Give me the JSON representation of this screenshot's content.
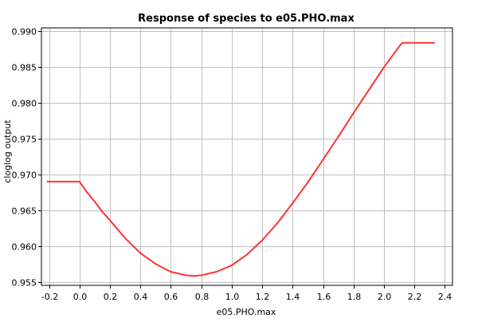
{
  "chart_data": {
    "type": "line",
    "title": "Response of species to e05.PHO.max",
    "xlabel": "e05.PHO.max",
    "ylabel": "cloglog output",
    "xlim": [
      -0.25,
      2.45
    ],
    "ylim": [
      0.9545,
      0.9905
    ],
    "x_ticks": [
      -0.2,
      0.0,
      0.2,
      0.4,
      0.6,
      0.8,
      1.0,
      1.2,
      1.4,
      1.6,
      1.8,
      2.0,
      2.2,
      2.4
    ],
    "x_tick_labels": [
      "-0.2",
      "0.0",
      "0.2",
      "0.4",
      "0.6",
      "0.8",
      "1.0",
      "1.2",
      "1.4",
      "1.6",
      "1.8",
      "2.0",
      "2.2",
      "2.4"
    ],
    "y_ticks": [
      0.955,
      0.96,
      0.965,
      0.97,
      0.975,
      0.98,
      0.985,
      0.99
    ],
    "y_tick_labels": [
      "0.955",
      "0.960",
      "0.965",
      "0.970",
      "0.975",
      "0.980",
      "0.985",
      "0.990"
    ],
    "grid": true,
    "series": [
      {
        "color": "#ff3333",
        "x": [
          -0.21,
          0.0,
          0.05,
          0.1,
          0.15,
          0.2,
          0.3,
          0.4,
          0.5,
          0.6,
          0.7,
          0.75,
          0.8,
          0.9,
          1.0,
          1.1,
          1.2,
          1.3,
          1.4,
          1.5,
          1.6,
          1.7,
          1.8,
          1.9,
          2.0,
          2.1,
          2.12,
          2.33
        ],
        "y": [
          0.969,
          0.969,
          0.9675,
          0.9662,
          0.9648,
          0.9636,
          0.9611,
          0.959,
          0.9575,
          0.9564,
          0.9559,
          0.9558,
          0.9559,
          0.9564,
          0.9573,
          0.9588,
          0.9608,
          0.9632,
          0.966,
          0.9689,
          0.9721,
          0.9753,
          0.9786,
          0.9818,
          0.985,
          0.9879,
          0.9884,
          0.9884
        ]
      }
    ]
  }
}
